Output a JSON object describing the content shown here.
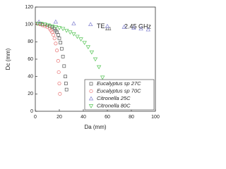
{
  "chart_data": {
    "type": "scatter",
    "x_label": "Da (mm)",
    "y_label": "Dc (mm)",
    "annotations": [
      {
        "text": "TE",
        "subscript": "111"
      },
      {
        "text": "2.45 GHz"
      }
    ],
    "xlim": [
      0,
      100
    ],
    "xticks": [
      0,
      20,
      40,
      60,
      80,
      100
    ],
    "ylim": [
      0,
      120
    ],
    "yticks": [
      0,
      20,
      40,
      60,
      80,
      100,
      120
    ],
    "legend": "lower right",
    "series": [
      {
        "name": "Eucalyptus sp 27C",
        "color": "#555555",
        "marker": "square",
        "x": [
          2,
          4,
          6,
          8,
          10,
          12,
          14,
          16,
          17,
          18,
          19,
          20,
          21,
          22,
          23,
          24,
          25,
          25.5,
          26
        ],
        "values": [
          101,
          101,
          100,
          100,
          99,
          98,
          97,
          95,
          93,
          91,
          88,
          84,
          79,
          72,
          63,
          52,
          40,
          32,
          25
        ]
      },
      {
        "name": "Eucalyptus sp 70C",
        "color": "#e87070",
        "marker": "circle",
        "x": [
          2,
          4,
          6,
          8,
          10,
          12,
          13,
          14,
          15,
          16,
          17,
          18,
          19,
          19.5,
          20,
          20.5
        ],
        "values": [
          101,
          100,
          99,
          98,
          97,
          95,
          93,
          91,
          88,
          84,
          78,
          70,
          58,
          45,
          32,
          20
        ]
      },
      {
        "name": "Citronella 25C",
        "color": "#8080d0",
        "marker": "triangle-up",
        "x": [
          3,
          17,
          32,
          46,
          60,
          74,
          82,
          88,
          94
        ],
        "values": [
          103,
          103,
          101,
          100,
          98,
          97,
          96,
          95,
          94
        ]
      },
      {
        "name": "Citronella 80C",
        "color": "#55c455",
        "marker": "triangle-down",
        "x": [
          2,
          5,
          8,
          11,
          14,
          17,
          20,
          23,
          26,
          29,
          32,
          35,
          38,
          41,
          44,
          47,
          50,
          53,
          56,
          58
        ],
        "values": [
          101,
          101,
          100,
          99,
          98,
          97,
          96,
          95,
          93,
          91,
          89,
          86,
          83,
          79,
          74,
          68,
          60,
          51,
          39,
          31
        ]
      }
    ]
  }
}
